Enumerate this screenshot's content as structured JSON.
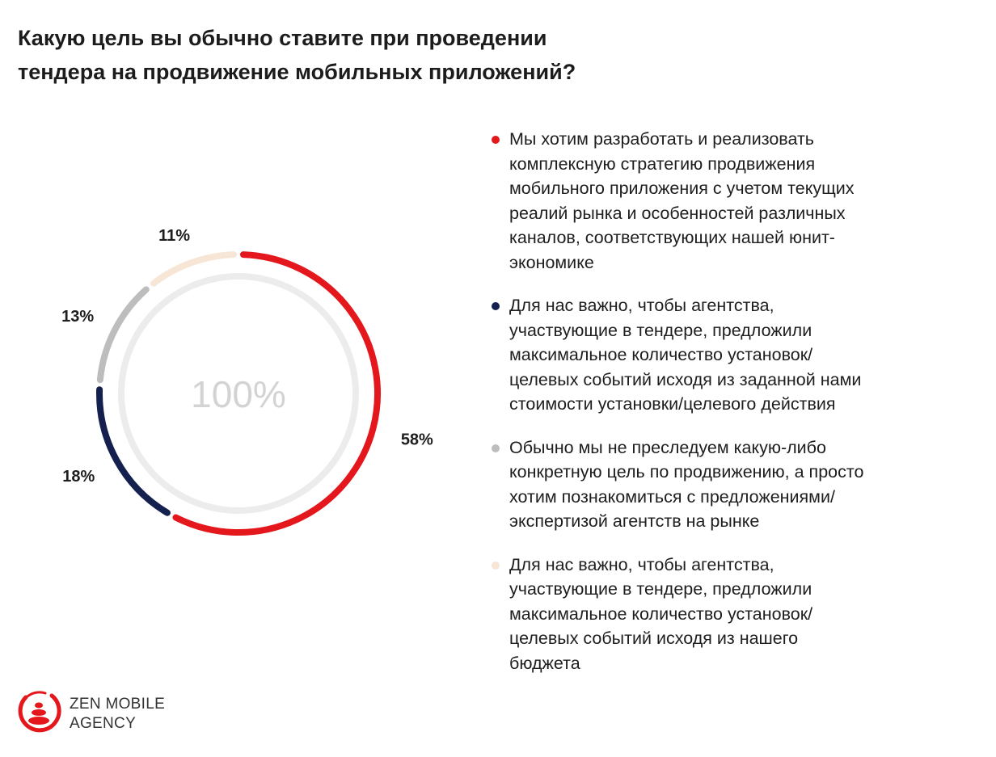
{
  "title": {
    "line1": "Какую цель вы обычно ставите при проведении",
    "line2": "тендера на продвижение мобильных приложений?"
  },
  "colors": {
    "red": "#e3171c",
    "navy": "#14204d",
    "gray": "#bdbdbd",
    "beige": "#f7e6d5",
    "track": "#ececec",
    "center_text": "#d3d3d3"
  },
  "chart_data": {
    "type": "pie",
    "variant": "donut",
    "title": "Какую цель вы обычно ставите при проведении тендера на продвижение мобильных приложений?",
    "center_label": "100%",
    "total_value": 100,
    "slices": [
      {
        "name": "Мы хотим разработать и реализовать комплексную стратегию продвижения мобильного приложения с учетом текущих реалий рынка и особенностей различных каналов, соответствующих нашей юнит-экономике",
        "value": 58,
        "label": "58%",
        "color": "#e3171c"
      },
      {
        "name": "Для нас важно, чтобы агентства, участвующие в тендере, предложили максимальное количество установок/целевых событий исходя из заданной нами стоимости установки/целевого действия",
        "value": 18,
        "label": "18%",
        "color": "#14204d"
      },
      {
        "name": "Обычно мы не преследуем какую-либо конкретную цель по продвижению, а просто хотим познакомиться с предложениями/экспертизой агентств на рынке",
        "value": 13,
        "label": "13%",
        "color": "#bdbdbd"
      },
      {
        "name": "Для нас важно, чтобы агентства, участвующие в тендере, предложили максимальное количество установок/целевых событий исходя из нашего бюджета",
        "value": 11,
        "label": "11%",
        "color": "#f7e6d5"
      }
    ],
    "legend_position": "right"
  },
  "legend": [
    {
      "color": "#e3171c",
      "lines": [
        "Мы хотим разработать и реализовать",
        "комплексную стратегию продвижения",
        "мобильного приложения с учетом текущих",
        "реалий рынка и особенностей различных",
        "каналов, соответствующих нашей юнит-",
        "экономике"
      ]
    },
    {
      "color": "#14204d",
      "lines": [
        "Для нас важно, чтобы агентства,",
        "участвующие в тендере, предложили",
        "максимальное количество установок/",
        "целевых событий исходя из заданной нами",
        "стоимости установки/целевого действия"
      ]
    },
    {
      "color": "#bdbdbd",
      "lines": [
        "Обычно мы не преследуем какую-либо",
        "конкретную цель по продвижению, а просто",
        "хотим познакомиться с предложениями/",
        "экспертизой агентств на рынке"
      ]
    },
    {
      "color": "#f7e6d5",
      "lines": [
        "Для нас важно, чтобы агентства,",
        "участвующие в тендере, предложили",
        "максимальное количество установок/",
        "целевых событий исходя из нашего",
        "бюджета"
      ]
    }
  ],
  "logo": {
    "line1": "ZEN MOBILE",
    "line2": "AGENCY",
    "icon": "zen-stones-icon"
  }
}
